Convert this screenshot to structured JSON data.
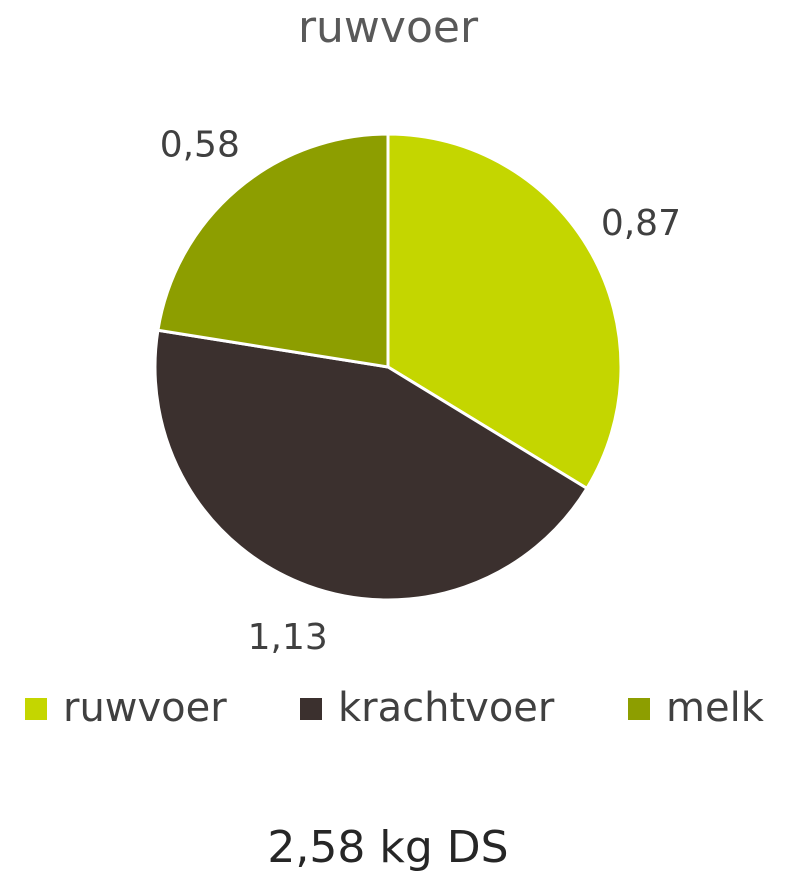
{
  "chart_data": {
    "type": "pie",
    "title": "ruwvoer",
    "categories": [
      "ruwvoer",
      "krachtvoer",
      "melk"
    ],
    "values": [
      0.87,
      1.13,
      0.58
    ],
    "value_labels": [
      "0,87",
      "1,13",
      "0,58"
    ],
    "colors": [
      "#c4d600",
      "#3b302e",
      "#8d9e00"
    ],
    "legend": "bottom",
    "annotation": "2,58 kg DS"
  }
}
